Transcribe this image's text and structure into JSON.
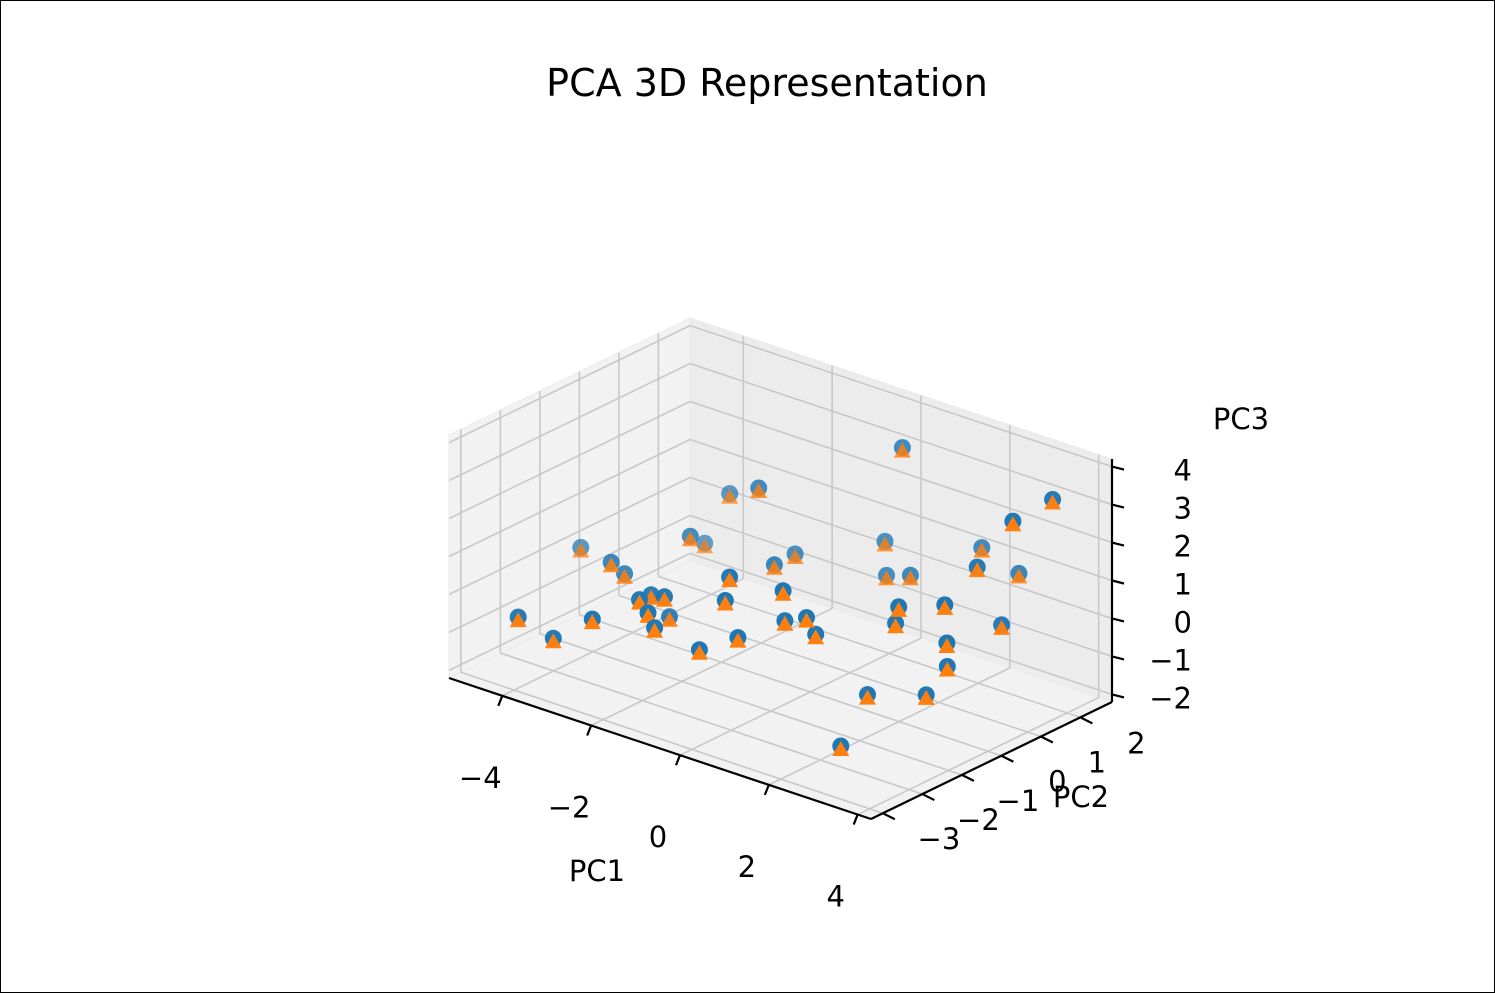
{
  "chart_data": {
    "type": "scatter",
    "projection": "3d",
    "title": "PCA 3D Representation",
    "xlabel": "PC1",
    "ylabel": "PC2",
    "zlabel": "PC3",
    "xlim": [
      -5.2,
      4.3
    ],
    "ylim": [
      -3.3,
      2.8
    ],
    "zlim": [
      -2.2,
      4.2
    ],
    "xticks": [
      "−4",
      "−2",
      "0",
      "2",
      "4"
    ],
    "xtick_values": [
      -4,
      -2,
      0,
      2,
      4
    ],
    "yticks": [
      "−3",
      "−2",
      "−1",
      "0",
      "1",
      "2"
    ],
    "ytick_values": [
      -3,
      -2,
      -1,
      0,
      1,
      2
    ],
    "zticks": [
      "−2",
      "−1",
      "0",
      "1",
      "2",
      "3",
      "4"
    ],
    "ztick_values": [
      -2,
      -1,
      0,
      1,
      2,
      3,
      4
    ],
    "grid": true,
    "series": [
      {
        "marker": "circle",
        "color": "#1f77b4",
        "points": [
          [
            -5.4,
            0.26,
            -0.64
          ],
          [
            -4.22,
            2.07,
            -0.98
          ],
          [
            -3.99,
            -2.91,
            -0.32
          ],
          [
            -3.72,
            -0.52,
            -0.28
          ],
          [
            -3.7,
            -0.88,
            0.21
          ],
          [
            -3.43,
            -2.65,
            -0.79
          ],
          [
            -3.31,
            1.68,
            0.88
          ],
          [
            -3.04,
            0.38,
            0.52
          ],
          [
            -2.56,
            -2.64,
            0.05
          ],
          [
            -2.38,
            -0.89,
            -0.7
          ],
          [
            -2.35,
            -1.39,
            0.14
          ],
          [
            -2.05,
            -2.02,
            0.45
          ],
          [
            -1.94,
            -1.51,
            0.31
          ],
          [
            -1.92,
            0.85,
            1.99
          ],
          [
            -1.77,
            -2.12,
            0.26
          ],
          [
            -1.75,
            1.58,
            -0.05
          ],
          [
            -1.28,
            0.53,
            0.38
          ],
          [
            -1.23,
            -2.56,
            0.3
          ],
          [
            -0.83,
            -1.11,
            1.06
          ],
          [
            -0.79,
            -1.92,
            -0.43
          ],
          [
            -0.49,
            2.44,
            0.34
          ],
          [
            -0.35,
            2.32,
            -0.44
          ],
          [
            0.13,
            -2.3,
            1.42
          ],
          [
            0.16,
            2.15,
            3.21
          ],
          [
            0.28,
            -0.96,
            0.27
          ],
          [
            0.5,
            1.97,
            0.07
          ],
          [
            0.86,
            -2.8,
            0.98
          ],
          [
            1.16,
            -1.17,
            0.36
          ],
          [
            1.37,
            2.8,
            0.72
          ],
          [
            2.0,
            -2.94,
            2.73
          ],
          [
            2.15,
            -0.26,
            0.58
          ],
          [
            2.31,
            2.68,
            0.47
          ],
          [
            2.34,
            -2.73,
            2.05
          ],
          [
            2.38,
            -0.44,
            1.19
          ],
          [
            2.52,
            1.39,
            1.37
          ],
          [
            2.89,
            1.59,
            -0.11
          ],
          [
            2.99,
            0.04,
            1.24
          ],
          [
            3.18,
            -0.12,
            0.39
          ],
          [
            3.29,
            -2.93,
            -0.86
          ],
          [
            3.35,
            -2.32,
            0.21
          ],
          [
            3.59,
            -0.57,
            0.16
          ],
          [
            3.63,
            2.05,
            3.25
          ],
          [
            3.88,
            -1.43,
            -0.04
          ],
          [
            4.0,
            0.63,
            3.54
          ]
        ]
      },
      {
        "marker": "triangle",
        "color": "#ff7f0e",
        "points": [
          [
            -5.4,
            0.26,
            -0.64
          ],
          [
            -4.22,
            2.07,
            -0.98
          ],
          [
            -3.99,
            -2.91,
            -0.32
          ],
          [
            -3.72,
            -0.52,
            -0.28
          ],
          [
            -3.7,
            -0.88,
            0.21
          ],
          [
            -3.43,
            -2.65,
            -0.79
          ],
          [
            -3.31,
            1.68,
            0.88
          ],
          [
            -3.04,
            0.38,
            0.52
          ],
          [
            -2.56,
            -2.64,
            0.05
          ],
          [
            -2.38,
            -0.89,
            -0.7
          ],
          [
            -2.35,
            -1.39,
            0.14
          ],
          [
            -2.05,
            -2.02,
            0.45
          ],
          [
            -1.94,
            -1.51,
            0.31
          ],
          [
            -1.92,
            0.85,
            1.99
          ],
          [
            -1.77,
            -2.12,
            0.26
          ],
          [
            -1.75,
            1.58,
            -0.05
          ],
          [
            -1.28,
            0.53,
            0.38
          ],
          [
            -1.23,
            -2.56,
            0.3
          ],
          [
            -0.83,
            -1.11,
            1.06
          ],
          [
            -0.79,
            -1.92,
            -0.43
          ],
          [
            -0.49,
            2.44,
            0.34
          ],
          [
            -0.35,
            2.32,
            -0.44
          ],
          [
            0.13,
            -2.3,
            1.42
          ],
          [
            0.16,
            2.15,
            3.21
          ],
          [
            0.28,
            -0.96,
            0.27
          ],
          [
            0.5,
            1.97,
            0.07
          ],
          [
            0.86,
            -2.8,
            0.98
          ],
          [
            1.16,
            -1.17,
            0.36
          ],
          [
            1.37,
            2.8,
            0.72
          ],
          [
            2.0,
            -2.94,
            2.73
          ],
          [
            2.15,
            -0.26,
            0.58
          ],
          [
            2.31,
            2.68,
            0.47
          ],
          [
            2.34,
            -2.73,
            2.05
          ],
          [
            2.38,
            -0.44,
            1.19
          ],
          [
            2.52,
            1.39,
            1.37
          ],
          [
            2.89,
            1.59,
            -0.11
          ],
          [
            2.99,
            0.04,
            1.24
          ],
          [
            3.18,
            -0.12,
            0.39
          ],
          [
            3.29,
            -2.93,
            -0.86
          ],
          [
            3.35,
            -2.32,
            0.21
          ],
          [
            3.59,
            -0.57,
            0.16
          ],
          [
            3.63,
            2.05,
            3.25
          ],
          [
            3.88,
            -1.43,
            -0.04
          ],
          [
            4.0,
            0.63,
            3.54
          ]
        ]
      }
    ]
  }
}
